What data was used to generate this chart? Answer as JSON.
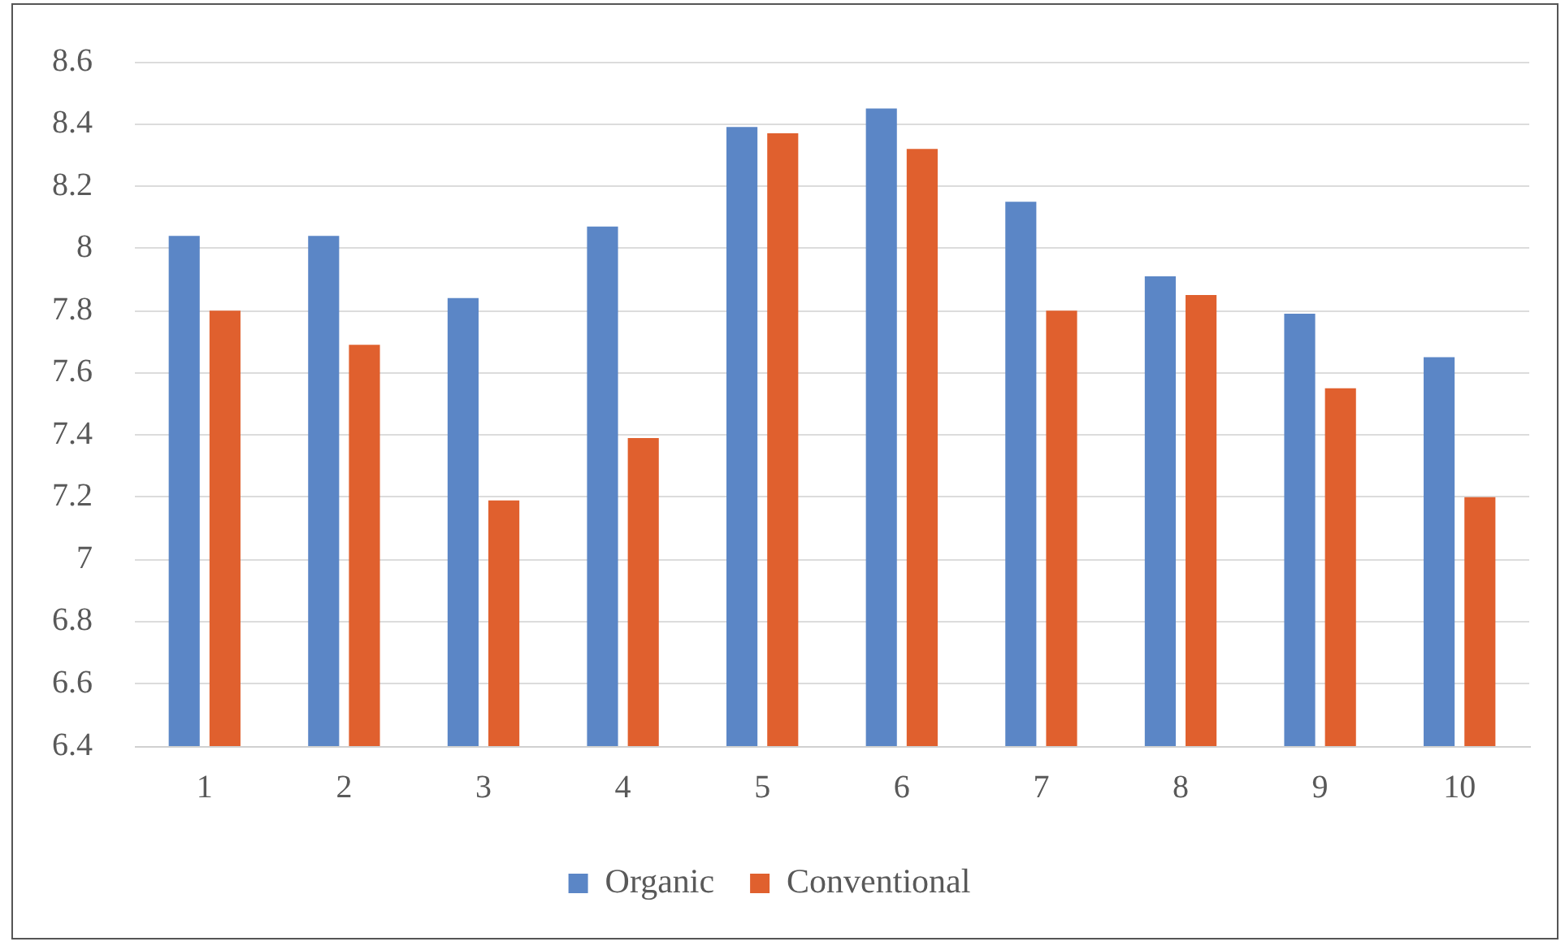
{
  "chart_data": {
    "type": "bar",
    "categories": [
      "1",
      "2",
      "3",
      "4",
      "5",
      "6",
      "7",
      "8",
      "9",
      "10"
    ],
    "series": [
      {
        "name": "Organic",
        "color": "#5b86c6",
        "values": [
          8.04,
          8.04,
          7.84,
          8.07,
          8.39,
          8.45,
          8.15,
          7.91,
          7.79,
          7.65
        ]
      },
      {
        "name": "Conventional",
        "color": "#e0602e",
        "values": [
          7.8,
          7.69,
          7.19,
          7.39,
          8.37,
          8.32,
          7.8,
          7.85,
          7.55,
          7.2
        ]
      }
    ],
    "ylim": [
      6.4,
      8.6
    ],
    "yticks": [
      6.4,
      6.6,
      6.8,
      7,
      7.2,
      7.4,
      7.6,
      7.8,
      8,
      8.2,
      8.4,
      8.6
    ],
    "grid": "y",
    "legend": "bottom"
  }
}
